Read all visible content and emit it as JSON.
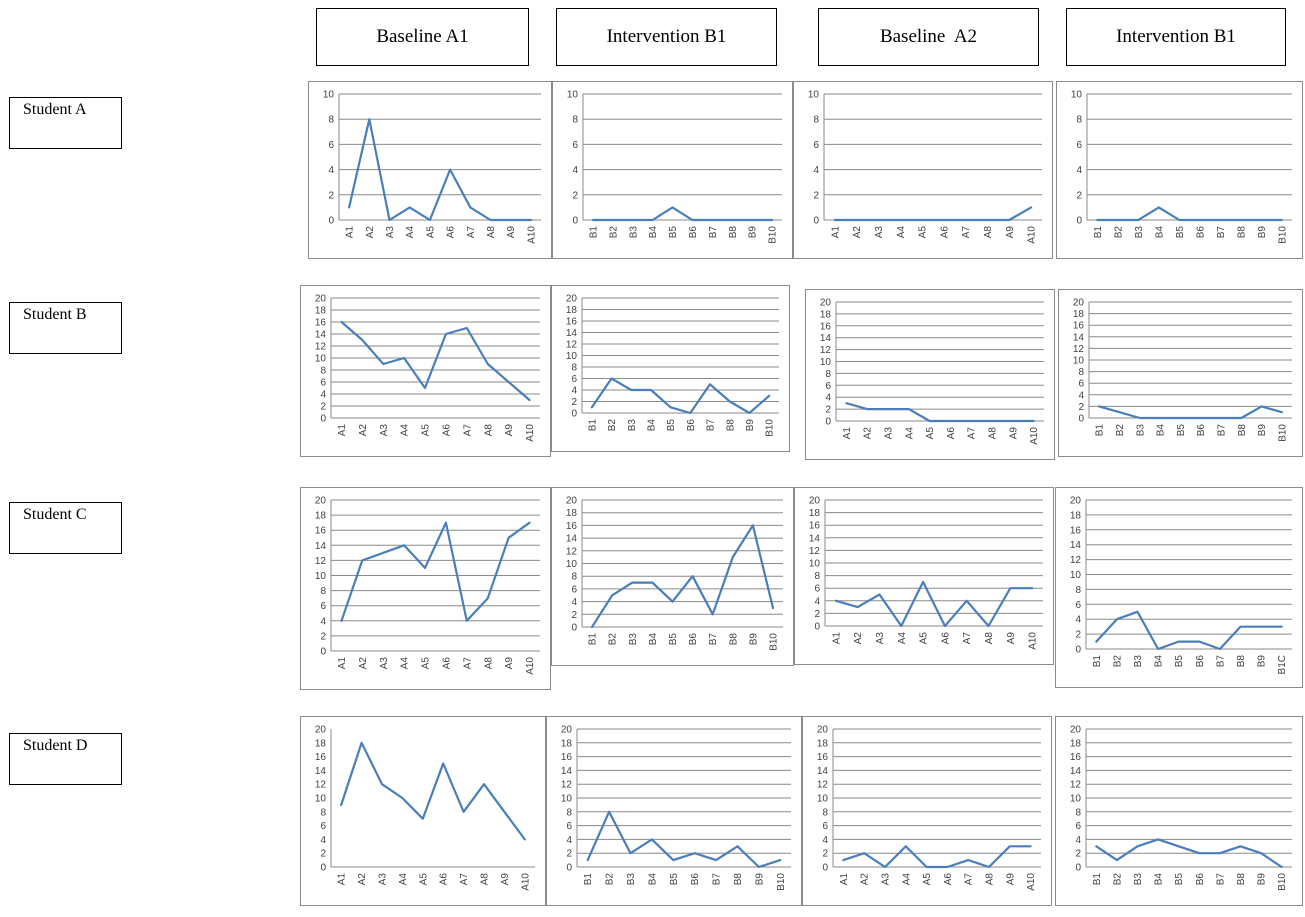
{
  "phases": [
    "Baseline A1",
    "Intervention B1",
    "Baseline  A2",
    "Intervention B1"
  ],
  "students": [
    "Student A",
    "Student B",
    "Student C",
    "Student D"
  ],
  "colors": {
    "series": "#4a7ebb",
    "grid": "#8a8a8a"
  },
  "chart_data": [
    {
      "type": "line",
      "student": "Student A",
      "phase": "Baseline A1",
      "categories": [
        "A1",
        "A2",
        "A3",
        "A4",
        "A5",
        "A6",
        "A7",
        "A8",
        "A9",
        "A10"
      ],
      "values": [
        1,
        8,
        0,
        1,
        0,
        4,
        1,
        0,
        0,
        0
      ],
      "ylim": [
        0,
        10
      ],
      "yticks": [
        0,
        2,
        4,
        6,
        8,
        10
      ],
      "grid": true
    },
    {
      "type": "line",
      "student": "Student A",
      "phase": "Intervention B1",
      "categories": [
        "B1",
        "B2",
        "B3",
        "B4",
        "B5",
        "B6",
        "B7",
        "B8",
        "B9",
        "B10"
      ],
      "values": [
        0,
        0,
        0,
        0,
        1,
        0,
        0,
        0,
        0,
        0
      ],
      "ylim": [
        0,
        10
      ],
      "yticks": [
        0,
        2,
        4,
        6,
        8,
        10
      ],
      "grid": true
    },
    {
      "type": "line",
      "student": "Student A",
      "phase": "Baseline  A2",
      "categories": [
        "A1",
        "A2",
        "A3",
        "A4",
        "A5",
        "A6",
        "A7",
        "A8",
        "A9",
        "A10"
      ],
      "values": [
        0,
        0,
        0,
        0,
        0,
        0,
        0,
        0,
        0,
        1
      ],
      "ylim": [
        0,
        10
      ],
      "yticks": [
        0,
        2,
        4,
        6,
        8,
        10
      ],
      "grid": true
    },
    {
      "type": "line",
      "student": "Student A",
      "phase": "Intervention B1",
      "categories": [
        "B1",
        "B2",
        "B3",
        "B4",
        "B5",
        "B6",
        "B7",
        "B8",
        "B9",
        "B10"
      ],
      "values": [
        0,
        0,
        0,
        1,
        0,
        0,
        0,
        0,
        0,
        0
      ],
      "ylim": [
        0,
        10
      ],
      "yticks": [
        0,
        2,
        4,
        6,
        8,
        10
      ],
      "grid": true
    },
    {
      "type": "line",
      "student": "Student B",
      "phase": "Baseline A1",
      "categories": [
        "A1",
        "A2",
        "A3",
        "A4",
        "A5",
        "A6",
        "A7",
        "A8",
        "A9",
        "A10"
      ],
      "values": [
        16,
        13,
        9,
        10,
        5,
        14,
        15,
        9,
        6,
        3
      ],
      "ylim": [
        0,
        20
      ],
      "yticks": [
        0,
        2,
        4,
        6,
        8,
        10,
        12,
        14,
        16,
        18,
        20
      ],
      "grid": true
    },
    {
      "type": "line",
      "student": "Student B",
      "phase": "Intervention B1",
      "categories": [
        "B1",
        "B2",
        "B3",
        "B4",
        "B5",
        "B6",
        "B7",
        "B8",
        "B9",
        "B10"
      ],
      "values": [
        1,
        6,
        4,
        4,
        1,
        0,
        5,
        2,
        0,
        3
      ],
      "ylim": [
        0,
        20
      ],
      "yticks": [
        0,
        2,
        4,
        6,
        8,
        10,
        12,
        14,
        16,
        18,
        20
      ],
      "grid": true
    },
    {
      "type": "line",
      "student": "Student B",
      "phase": "Baseline  A2",
      "categories": [
        "A1",
        "A2",
        "A3",
        "A4",
        "A5",
        "A6",
        "A7",
        "A8",
        "A9",
        "A10"
      ],
      "values": [
        3,
        2,
        2,
        2,
        0,
        0,
        0,
        0,
        0,
        0
      ],
      "ylim": [
        0,
        20
      ],
      "yticks": [
        0,
        2,
        4,
        6,
        8,
        10,
        12,
        14,
        16,
        18,
        20
      ],
      "grid": true
    },
    {
      "type": "line",
      "student": "Student B",
      "phase": "Intervention B1",
      "categories": [
        "B1",
        "B2",
        "B3",
        "B4",
        "B5",
        "B6",
        "B7",
        "B8",
        "B9",
        "B10"
      ],
      "values": [
        2,
        1,
        0,
        0,
        0,
        0,
        0,
        0,
        2,
        1
      ],
      "ylim": [
        0,
        20
      ],
      "yticks": [
        0,
        2,
        4,
        6,
        8,
        10,
        12,
        14,
        16,
        18,
        20
      ],
      "grid": true
    },
    {
      "type": "line",
      "student": "Student C",
      "phase": "Baseline A1",
      "categories": [
        "A1",
        "A2",
        "A3",
        "A4",
        "A5",
        "A6",
        "A7",
        "A8",
        "A9",
        "A10"
      ],
      "values": [
        4,
        12,
        13,
        14,
        11,
        17,
        4,
        7,
        15,
        17
      ],
      "ylim": [
        0,
        20
      ],
      "yticks": [
        0,
        2,
        4,
        6,
        8,
        10,
        12,
        14,
        16,
        18,
        20
      ],
      "grid": true
    },
    {
      "type": "line",
      "student": "Student C",
      "phase": "Intervention B1",
      "categories": [
        "B1",
        "B2",
        "B3",
        "B4",
        "B5",
        "B6",
        "B7",
        "B8",
        "B9",
        "B10"
      ],
      "values": [
        0,
        5,
        7,
        7,
        4,
        8,
        2,
        11,
        16,
        3
      ],
      "ylim": [
        0,
        20
      ],
      "yticks": [
        0,
        2,
        4,
        6,
        8,
        10,
        12,
        14,
        16,
        18,
        20
      ],
      "grid": true
    },
    {
      "type": "line",
      "student": "Student C",
      "phase": "Baseline  A2",
      "categories": [
        "A1",
        "A2",
        "A3",
        "A4",
        "A5",
        "A6",
        "A7",
        "A8",
        "A9",
        "A10"
      ],
      "values": [
        4,
        3,
        5,
        0,
        7,
        0,
        4,
        0,
        6,
        6
      ],
      "ylim": [
        0,
        20
      ],
      "yticks": [
        0,
        2,
        4,
        6,
        8,
        10,
        12,
        14,
        16,
        18,
        20
      ],
      "grid": true
    },
    {
      "type": "line",
      "student": "Student C",
      "phase": "Intervention B1",
      "categories": [
        "B1",
        "B2",
        "B3",
        "B4",
        "B5",
        "B6",
        "B7",
        "B8",
        "B9",
        "B1C"
      ],
      "values": [
        1,
        4,
        5,
        0,
        1,
        1,
        0,
        3,
        3,
        3
      ],
      "ylim": [
        0,
        20
      ],
      "yticks": [
        0,
        2,
        4,
        6,
        8,
        10,
        12,
        14,
        16,
        18,
        20
      ],
      "grid": true
    },
    {
      "type": "line",
      "student": "Student D",
      "phase": "Baseline A1",
      "categories": [
        "A1",
        "A2",
        "A3",
        "A4",
        "A5",
        "A6",
        "A7",
        "A8",
        "A9",
        "A10"
      ],
      "values": [
        9,
        18,
        12,
        10,
        7,
        15,
        8,
        12,
        8,
        4
      ],
      "ylim": [
        0,
        20
      ],
      "yticks": [
        0,
        2,
        4,
        6,
        8,
        10,
        12,
        14,
        16,
        18,
        20
      ],
      "grid": false
    },
    {
      "type": "line",
      "student": "Student D",
      "phase": "Intervention B1",
      "categories": [
        "B1",
        "B2",
        "B3",
        "B4",
        "B5",
        "B6",
        "B7",
        "B8",
        "B9",
        "B10"
      ],
      "values": [
        1,
        8,
        2,
        4,
        1,
        2,
        1,
        3,
        0,
        1
      ],
      "ylim": [
        0,
        20
      ],
      "yticks": [
        0,
        2,
        4,
        6,
        8,
        10,
        12,
        14,
        16,
        18,
        20
      ],
      "grid": true
    },
    {
      "type": "line",
      "student": "Student D",
      "phase": "Baseline  A2",
      "categories": [
        "A1",
        "A2",
        "A3",
        "A4",
        "A5",
        "A6",
        "A7",
        "A8",
        "A9",
        "A10"
      ],
      "values": [
        1,
        2,
        0,
        3,
        0,
        0,
        1,
        0,
        3,
        3
      ],
      "ylim": [
        0,
        20
      ],
      "yticks": [
        0,
        2,
        4,
        6,
        8,
        10,
        12,
        14,
        16,
        18,
        20
      ],
      "grid": true
    },
    {
      "type": "line",
      "student": "Student D",
      "phase": "Intervention B1",
      "categories": [
        "B1",
        "B2",
        "B3",
        "B4",
        "B5",
        "B6",
        "B7",
        "B8",
        "B9",
        "B10"
      ],
      "values": [
        3,
        1,
        3,
        4,
        3,
        2,
        2,
        3,
        2,
        0
      ],
      "ylim": [
        0,
        20
      ],
      "yticks": [
        0,
        2,
        4,
        6,
        8,
        10,
        12,
        14,
        16,
        18,
        20
      ],
      "grid": true
    }
  ]
}
